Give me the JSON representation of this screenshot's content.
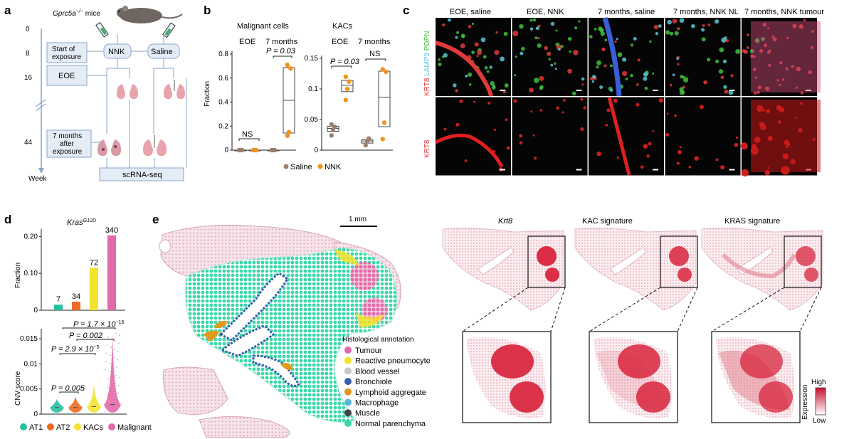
{
  "panel_a": {
    "letter": "a",
    "mouse_label_pre": "Gprc5a",
    "mouse_label_sup": "−/−",
    "mouse_label_post": " mice",
    "timepoints": [
      "0",
      "8",
      "16",
      "44"
    ],
    "week_label": "Week",
    "box_start": [
      "Start of",
      "exposure"
    ],
    "box_eoe": "EOE",
    "box_7m": [
      "7 months",
      "after",
      "exposure"
    ],
    "nnk_label": "NNK",
    "saline_label": "Saline",
    "scrnaseq_label": "scRNA-seq"
  },
  "panel_b": {
    "letter": "b",
    "subtitles": [
      "Malignant cells",
      "KACs"
    ],
    "group_labels": [
      "EOE",
      "7 months",
      "EOE",
      "7 months"
    ],
    "ylabel": "Fraction",
    "annot": [
      "NS",
      "P = 0.03",
      "P = 0.03",
      "NS"
    ],
    "legend": [
      {
        "label": "Saline",
        "color": "#9b7f6e"
      },
      {
        "label": "NNK",
        "color": "#ee9321"
      }
    ]
  },
  "panel_c": {
    "letter": "c",
    "col_titles": [
      "EOE, saline",
      "EOE, NNK",
      "7 months, saline",
      "7 months, NNK NL",
      "7 months, NNK tumour"
    ],
    "row_label_top": [
      {
        "text": "KRT8",
        "color": "#e53a3a"
      },
      {
        "text": " LAMP3",
        "color": "#5cc7d6"
      },
      {
        "text": " PDPN",
        "color": "#3fbf3f"
      }
    ],
    "row_label_bottom": "KRT8"
  },
  "panel_d": {
    "letter": "d",
    "title_pre": "Kras",
    "title_sup": "G12D",
    "ylabel_top": "Fraction",
    "ylabel_bottom": "CNV score",
    "pvals": [
      {
        "pre": "P = 1.7 × 10",
        "sup": "−16"
      },
      {
        "pre": "P = 0.002",
        "sup": ""
      },
      {
        "pre": "P = 2.9 × 10",
        "sup": "−5"
      },
      {
        "pre": "P = 0.005",
        "sup": ""
      }
    ],
    "legend": [
      {
        "label": "AT1",
        "color": "#28bfa0"
      },
      {
        "label": "AT2",
        "color": "#ee6a24"
      },
      {
        "label": "KACs",
        "color": "#f2e32c"
      },
      {
        "label": "Malignant",
        "color": "#e36aa8"
      }
    ]
  },
  "panel_e": {
    "letter": "e",
    "scalebar": "1 mm",
    "legend_title": "Histological annotation",
    "legend": [
      {
        "label": "Tumour",
        "color": "#e36aa8"
      },
      {
        "label": "Reactive pneumocyte",
        "color": "#f2e32c"
      },
      {
        "label": "Blood vessel",
        "color": "#c9c9c9"
      },
      {
        "label": "Bronchiole",
        "color": "#3a5ea8"
      },
      {
        "label": "Lymphoid aggregate",
        "color": "#e29a1d"
      },
      {
        "label": "Macrophage",
        "color": "#59b6e0"
      },
      {
        "label": "Muscle",
        "color": "#444444"
      },
      {
        "label": "Normal parenchyma",
        "color": "#39d8a9"
      }
    ],
    "map_titles": [
      "Krt8",
      "KAC signature",
      "KRAS signature"
    ],
    "colorbar": {
      "high": "High",
      "low": "Low",
      "label": "Expression"
    }
  },
  "chart_data": [
    {
      "panel": "b-left",
      "type": "box",
      "title": "Malignant cells",
      "ylabel": "Fraction",
      "ylim": [
        0,
        0.8
      ],
      "yticks": [
        0,
        0.2,
        0.4,
        0.6,
        0.8
      ],
      "groups": [
        {
          "time": "EOE",
          "condition": "Saline",
          "points": [
            0,
            0,
            0
          ]
        },
        {
          "time": "EOE",
          "condition": "NNK",
          "points": [
            0,
            0,
            0,
            0
          ]
        },
        {
          "time": "7 months",
          "condition": "Saline",
          "points": [
            0,
            0,
            0
          ]
        },
        {
          "time": "7 months",
          "condition": "NNK",
          "points": [
            0.12,
            0.15,
            0.68,
            0.71
          ]
        }
      ]
    },
    {
      "panel": "b-right",
      "type": "box",
      "title": "KACs",
      "ylabel": "Fraction",
      "ylim": [
        0,
        0.15
      ],
      "yticks": [
        0,
        0.05,
        0.1,
        0.15
      ],
      "groups": [
        {
          "time": "EOE",
          "condition": "Saline",
          "points": [
            0.024,
            0.033,
            0.038,
            0.042
          ]
        },
        {
          "time": "EOE",
          "condition": "NNK",
          "points": [
            0.082,
            0.1,
            0.112,
            0.12
          ]
        },
        {
          "time": "7 months",
          "condition": "Saline",
          "points": [
            0.008,
            0.015,
            0.019
          ]
        },
        {
          "time": "7 months",
          "condition": "NNK",
          "points": [
            0.018,
            0.045,
            0.128,
            0.132
          ]
        }
      ]
    },
    {
      "panel": "d-top",
      "type": "bar",
      "ylabel": "Fraction",
      "ylim": [
        0,
        0.22
      ],
      "yticks": [
        0,
        0.1,
        0.2
      ],
      "categories": [
        "AT1",
        "AT2",
        "KACs",
        "Malignant"
      ],
      "values": [
        0.015,
        0.023,
        0.115,
        0.203
      ],
      "labels": [
        "7",
        "34",
        "72",
        "340"
      ]
    },
    {
      "panel": "d-bottom",
      "type": "violin",
      "ylabel": "CNV score",
      "ylim": [
        0,
        0.017
      ],
      "yticks": [
        0,
        0.005,
        0.01,
        0.015
      ],
      "categories": [
        "AT1",
        "AT2",
        "KACs",
        "Malignant"
      ],
      "medians": [
        0.0013,
        0.0013,
        0.0015,
        0.0019
      ]
    }
  ]
}
